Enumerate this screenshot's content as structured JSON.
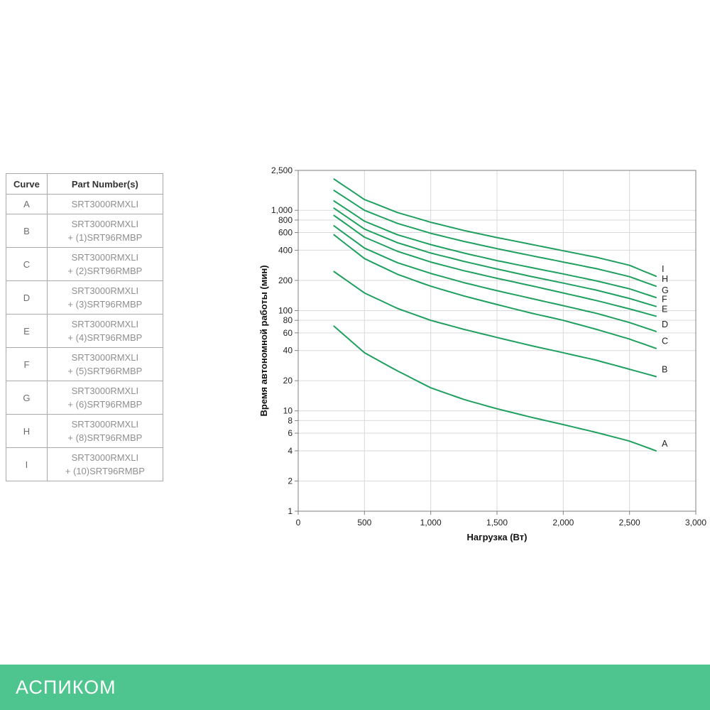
{
  "table": {
    "headers": [
      "Curve",
      "Part Number(s)"
    ],
    "rows": [
      {
        "curve": "A",
        "lines": [
          "SRT3000RMXLI"
        ]
      },
      {
        "curve": "B",
        "lines": [
          "SRT3000RMXLI",
          "+ (1)SRT96RMBP"
        ]
      },
      {
        "curve": "C",
        "lines": [
          "SRT3000RMXLI",
          "+ (2)SRT96RMBP"
        ]
      },
      {
        "curve": "D",
        "lines": [
          "SRT3000RMXLI",
          "+ (3)SRT96RMBP"
        ]
      },
      {
        "curve": "E",
        "lines": [
          "SRT3000RMXLI",
          "+ (4)SRT96RMBP"
        ]
      },
      {
        "curve": "F",
        "lines": [
          "SRT3000RMXLI",
          "+ (5)SRT96RMBP"
        ]
      },
      {
        "curve": "G",
        "lines": [
          "SRT3000RMXLI",
          "+ (6)SRT96RMBP"
        ]
      },
      {
        "curve": "H",
        "lines": [
          "SRT3000RMXLI",
          "+ (8)SRT96RMBP"
        ]
      },
      {
        "curve": "I",
        "lines": [
          "SRT3000RMXLI",
          "+ (10)SRT96RMBP"
        ]
      }
    ]
  },
  "chart_data": {
    "type": "line",
    "title": "",
    "xlabel": "Нагрузка (Вт)",
    "ylabel": "Время автономной работы (мин)",
    "xlim": [
      0,
      3000
    ],
    "ylim": [
      1,
      2500
    ],
    "yscale": "log",
    "grid": true,
    "xticks": [
      0,
      500,
      1000,
      1500,
      2000,
      2500,
      3000
    ],
    "yticks": [
      1,
      2,
      4,
      6,
      8,
      10,
      20,
      40,
      60,
      80,
      100,
      200,
      400,
      600,
      800,
      1000,
      2500
    ],
    "x": [
      270,
      500,
      750,
      1000,
      1250,
      1500,
      1750,
      2000,
      2250,
      2500,
      2700
    ],
    "series": [
      {
        "name": "A",
        "values": [
          70,
          38,
          25,
          17,
          13,
          10.5,
          8.7,
          7.3,
          6.1,
          5,
          4
        ]
      },
      {
        "name": "B",
        "values": [
          245,
          150,
          105,
          80,
          65,
          54,
          45,
          38,
          32,
          26,
          22
        ]
      },
      {
        "name": "C",
        "values": [
          570,
          330,
          230,
          175,
          140,
          115,
          95,
          80,
          65,
          52,
          42
        ]
      },
      {
        "name": "D",
        "values": [
          700,
          420,
          300,
          235,
          190,
          158,
          133,
          112,
          94,
          76,
          62
        ]
      },
      {
        "name": "E",
        "values": [
          890,
          540,
          390,
          305,
          250,
          210,
          178,
          150,
          126,
          104,
          88
        ]
      },
      {
        "name": "F",
        "values": [
          1050,
          650,
          475,
          375,
          310,
          260,
          220,
          188,
          160,
          132,
          110
        ]
      },
      {
        "name": "G",
        "values": [
          1240,
          780,
          570,
          455,
          375,
          315,
          270,
          232,
          198,
          165,
          135
        ]
      },
      {
        "name": "H",
        "values": [
          1580,
          1000,
          740,
          590,
          490,
          415,
          355,
          305,
          262,
          218,
          175
        ]
      },
      {
        "name": "I",
        "values": [
          2050,
          1280,
          950,
          760,
          630,
          535,
          460,
          395,
          340,
          283,
          220
        ]
      }
    ],
    "line_color": "#1fa05f",
    "grid_color": "#d9d9d9",
    "axis_color": "#808080",
    "label_color": "#222222"
  },
  "footer": {
    "brand": "АСПИКОМ",
    "background": "#4ec48f"
  }
}
